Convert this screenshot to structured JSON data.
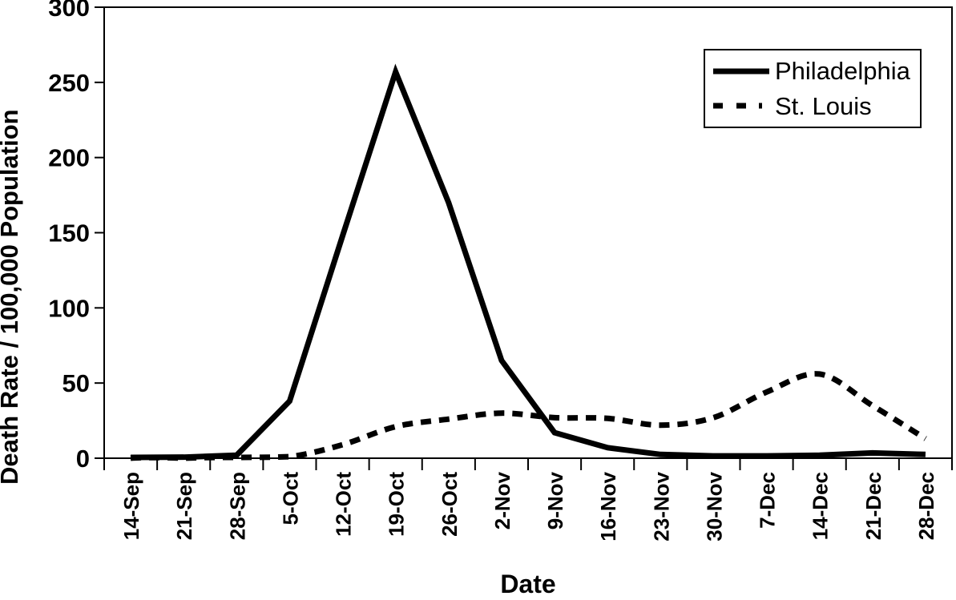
{
  "chart_data": {
    "type": "line",
    "title": "",
    "xlabel": "Date",
    "ylabel": "Death Rate / 100,000 Population",
    "ylim": [
      0,
      300
    ],
    "yticks": [
      0,
      50,
      100,
      150,
      200,
      250,
      300
    ],
    "grid": false,
    "legend_position": "top-right",
    "background_color": "#ffffff",
    "line_color": "#000000",
    "categories": [
      "14-Sep",
      "21-Sep",
      "28-Sep",
      "5-Oct",
      "12-Oct",
      "19-Oct",
      "26-Oct",
      "2-Nov",
      "9-Nov",
      "16-Nov",
      "23-Nov",
      "30-Nov",
      "7-Dec",
      "14-Dec",
      "21-Dec",
      "28-Dec"
    ],
    "series": [
      {
        "name": "Philadelphia",
        "line_style": "solid",
        "color": "#000000",
        "values": [
          0.5,
          0.7,
          2,
          38,
          148,
          257,
          170,
          65,
          17,
          7,
          2.5,
          1.5,
          1.5,
          2,
          3.5,
          2.5
        ]
      },
      {
        "name": "St. Louis",
        "line_style": "dashed",
        "color": "#000000",
        "values": [
          0,
          0,
          0.5,
          1,
          9,
          21,
          26,
          30,
          27,
          26.5,
          22,
          27,
          44,
          56,
          35,
          13
        ]
      }
    ]
  }
}
